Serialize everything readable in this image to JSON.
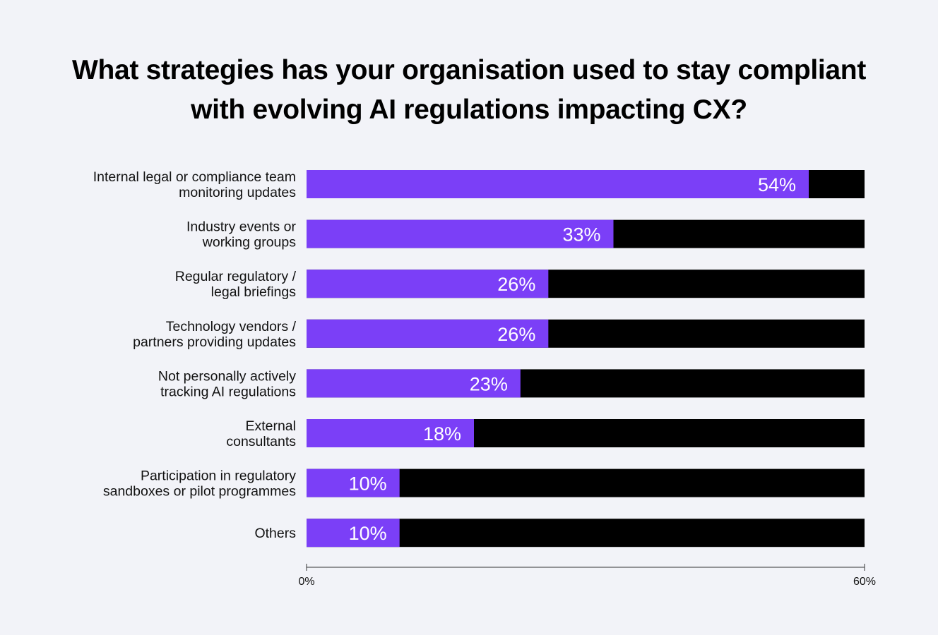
{
  "chart_data": {
    "type": "bar",
    "orientation": "horizontal",
    "title_lines": [
      "What strategies has your organisation used to stay compliant",
      "with evolving AI regulations impacting CX?"
    ],
    "categories": [
      [
        "Internal legal or compliance team",
        "monitoring updates"
      ],
      [
        "Industry events or",
        "working groups"
      ],
      [
        "Regular regulatory /",
        "legal briefings"
      ],
      [
        "Technology vendors /",
        "partners providing updates"
      ],
      [
        "Not personally actively",
        "tracking AI regulations"
      ],
      [
        "External",
        "consultants"
      ],
      [
        "Participation in regulatory",
        "sandboxes or pilot programmes"
      ],
      [
        "Others"
      ]
    ],
    "values": [
      54,
      33,
      26,
      26,
      23,
      18,
      10,
      10
    ],
    "value_labels": [
      "54%",
      "33%",
      "26%",
      "26%",
      "23%",
      "18%",
      "10%",
      "10%"
    ],
    "xlim": [
      0,
      60
    ],
    "ticks": [
      0,
      60
    ],
    "tick_labels": [
      "0%",
      "60%"
    ],
    "colors": {
      "bar": "#7b3ff7",
      "track": "#000000",
      "background": "#f2f3f8",
      "text": "#111111",
      "value_text": "#ffffff"
    }
  }
}
